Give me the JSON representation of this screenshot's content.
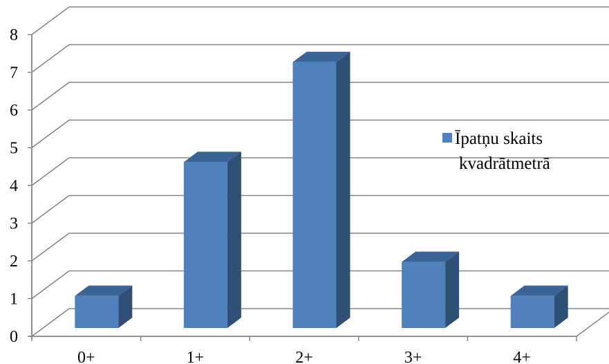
{
  "chart_data": {
    "type": "bar",
    "style": "3d-column",
    "categories": [
      "0+",
      "1+",
      "2+",
      "3+",
      "4+"
    ],
    "series": [
      {
        "name": "Īpatņu skaits kvadrātmetrā",
        "values": [
          0.85,
          4.4,
          7.05,
          1.75,
          0.85
        ],
        "color": "#4F81BD"
      }
    ],
    "y_ticks": [
      "0",
      "1",
      "2",
      "3",
      "4",
      "5",
      "6",
      "7",
      "8"
    ],
    "ylim": [
      0,
      8
    ],
    "grid": true,
    "legend": {
      "position": "right",
      "lines": [
        "Īpatņu skaits",
        "kvadrātmetrā"
      ]
    },
    "colors": {
      "bar_front": "#4F81BD",
      "bar_side": "#2F5075",
      "bar_top": "#3A6496",
      "gridline": "#868686",
      "axis": "#868686"
    }
  }
}
